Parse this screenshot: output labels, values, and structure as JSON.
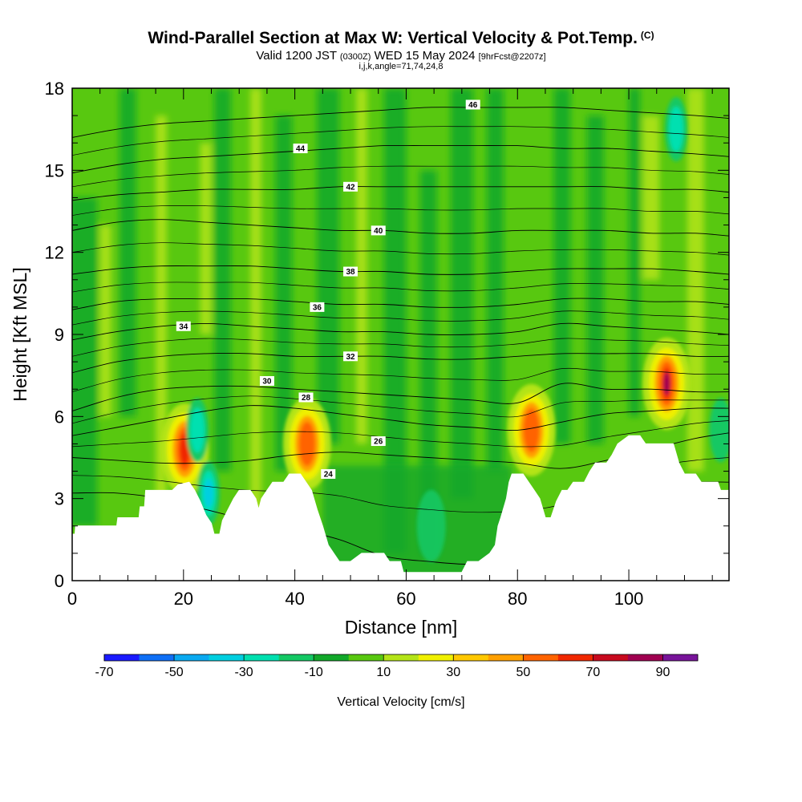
{
  "title": {
    "main": "Wind-Parallel Section at Max W: Vertical Velocity & Pot.Temp.",
    "copyright": "(C)",
    "valid_a": "Valid 1200 JST",
    "valid_b": "(0300Z)",
    "valid_c": "WED 15 May 2024",
    "valid_d": "[9hrFcst@2207z]",
    "indices": "i,j,k,angle=71,74,24,8"
  },
  "chart_data": {
    "type": "heatmap",
    "xlabel": "Distance [nm]",
    "ylabel": "Height [Kft MSL]",
    "xlim": [
      0,
      118
    ],
    "ylim": [
      0,
      18
    ],
    "x_ticks": [
      0,
      20,
      40,
      60,
      80,
      100
    ],
    "y_ticks": [
      0,
      3,
      6,
      9,
      12,
      15,
      18
    ],
    "colorbar": {
      "label": "Vertical Velocity [cm/s]",
      "tick_labels": [
        "-70",
        "-50",
        "-30",
        "-10",
        "10",
        "30",
        "50",
        "70",
        "90"
      ],
      "levels": [
        -70,
        -60,
        -50,
        -40,
        -30,
        -20,
        -10,
        0,
        10,
        20,
        30,
        40,
        50,
        60,
        70,
        80,
        90
      ],
      "colors": [
        "#1a1aff",
        "#0f6ff5",
        "#0aa9f0",
        "#00cfe0",
        "#00e0b0",
        "#14c864",
        "#12a82a",
        "#58c810",
        "#b4e418",
        "#f0f000",
        "#ffc800",
        "#ffa000",
        "#ff6400",
        "#f02800",
        "#c80a1e",
        "#a00050",
        "#78149a"
      ]
    },
    "terrain_kft": [
      [
        0,
        1.7
      ],
      [
        0.5,
        1.7
      ],
      [
        0.6,
        2.0
      ],
      [
        8,
        2.0
      ],
      [
        8.2,
        2.3
      ],
      [
        12,
        2.3
      ],
      [
        12.2,
        2.7
      ],
      [
        13,
        2.7
      ],
      [
        13.2,
        3.3
      ],
      [
        18,
        3.3
      ],
      [
        19,
        3.5
      ],
      [
        21,
        3.6
      ],
      [
        22,
        3.3
      ],
      [
        23,
        2.9
      ],
      [
        24,
        2.4
      ],
      [
        25,
        2.1
      ],
      [
        25.5,
        1.7
      ],
      [
        26.5,
        1.7
      ],
      [
        27,
        2.2
      ],
      [
        28,
        2.6
      ],
      [
        29,
        3.0
      ],
      [
        30,
        3.3
      ],
      [
        32,
        3.3
      ],
      [
        33,
        3.0
      ],
      [
        33.5,
        2.6
      ],
      [
        34,
        3.0
      ],
      [
        35,
        3.3
      ],
      [
        36,
        3.6
      ],
      [
        38,
        3.6
      ],
      [
        39,
        3.9
      ],
      [
        41,
        3.9
      ],
      [
        42,
        3.6
      ],
      [
        43,
        3.3
      ],
      [
        44,
        2.6
      ],
      [
        45,
        2.0
      ],
      [
        46,
        1.3
      ],
      [
        47,
        1.0
      ],
      [
        48,
        0.7
      ],
      [
        50,
        0.7
      ],
      [
        52,
        1.0
      ],
      [
        54,
        1.0
      ],
      [
        56,
        1.0
      ],
      [
        57,
        0.7
      ],
      [
        59,
        0.7
      ],
      [
        59.5,
        0.3
      ],
      [
        70,
        0.3
      ],
      [
        71,
        0.7
      ],
      [
        73,
        0.7
      ],
      [
        75,
        1.0
      ],
      [
        76,
        1.3
      ],
      [
        76.5,
        2.0
      ],
      [
        77,
        2.3
      ],
      [
        78,
        3.0
      ],
      [
        78.5,
        3.6
      ],
      [
        79,
        3.9
      ],
      [
        81,
        3.9
      ],
      [
        82,
        3.6
      ],
      [
        83,
        3.3
      ],
      [
        84,
        3.0
      ],
      [
        85,
        2.3
      ],
      [
        86,
        2.3
      ],
      [
        87,
        2.9
      ],
      [
        88,
        3.3
      ],
      [
        89,
        3.3
      ],
      [
        90,
        3.6
      ],
      [
        92,
        3.6
      ],
      [
        93,
        4.0
      ],
      [
        94,
        4.3
      ],
      [
        96,
        4.3
      ],
      [
        97,
        4.6
      ],
      [
        98,
        5.0
      ],
      [
        100,
        5.3
      ],
      [
        102,
        5.3
      ],
      [
        103,
        5.0
      ],
      [
        108,
        5.0
      ],
      [
        109,
        4.3
      ],
      [
        110,
        3.9
      ],
      [
        112,
        3.9
      ],
      [
        113,
        3.6
      ],
      [
        116,
        3.6
      ],
      [
        116.5,
        3.3
      ],
      [
        118,
        3.3
      ]
    ],
    "theta_contours": [
      {
        "label": "24",
        "heights": [
          3.2,
          3.2,
          3.0,
          2.6,
          2.2,
          1.9,
          1.5,
          0.9,
          0.7,
          0.6,
          0.8,
          1.5,
          2.8,
          3.5,
          3.6,
          3.6
        ],
        "label_at": [
          46,
          3.9
        ]
      },
      {
        "label": "26",
        "heights": [
          4.5,
          4.4,
          4.3,
          4.3,
          4.4,
          4.6,
          4.7,
          4.6,
          4.5,
          4.4,
          4.3,
          4.1,
          4.4,
          4.8,
          5.2,
          5.4
        ],
        "label_at": [
          55,
          5.1
        ]
      },
      {
        "label": "28",
        "heights": [
          5.3,
          5.6,
          5.9,
          6.2,
          6.4,
          6.3,
          6.1,
          5.9,
          5.7,
          5.6,
          5.5,
          5.8,
          6.1,
          6.2,
          6.3,
          6.3
        ],
        "label_at": [
          42,
          6.7
        ]
      },
      {
        "label": "30",
        "heights": [
          6.2,
          6.7,
          7.0,
          7.1,
          7.1,
          7.0,
          6.9,
          6.8,
          6.7,
          6.6,
          6.5,
          7.2,
          7.0,
          7.0,
          6.9,
          6.9
        ],
        "label_at": [
          35,
          7.3
        ]
      },
      {
        "label": "32",
        "heights": [
          7.6,
          8.0,
          8.2,
          8.3,
          8.3,
          8.2,
          8.2,
          8.2,
          8.1,
          8.1,
          8.2,
          8.3,
          8.3,
          8.3,
          8.2,
          8.2
        ],
        "label_at": [
          50,
          8.2
        ]
      },
      {
        "label": "34",
        "heights": [
          8.8,
          9.1,
          9.3,
          9.4,
          9.3,
          9.2,
          9.1,
          9.1,
          9.0,
          9.0,
          9.1,
          9.4,
          9.3,
          9.2,
          9.1,
          9.0
        ],
        "label_at": [
          20,
          9.3
        ]
      },
      {
        "label": "36",
        "heights": [
          9.9,
          10.2,
          10.3,
          10.3,
          10.3,
          10.2,
          10.1,
          10.1,
          10.0,
          10.0,
          10.1,
          10.3,
          10.3,
          10.2,
          10.2,
          10.1
        ],
        "label_at": [
          44,
          10.0
        ]
      },
      {
        "label": "38",
        "heights": [
          11.2,
          11.4,
          11.5,
          11.5,
          11.5,
          11.4,
          11.3,
          11.3,
          11.2,
          11.2,
          11.3,
          11.4,
          11.4,
          11.4,
          11.3,
          11.2
        ],
        "label_at": [
          50,
          11.3
        ]
      },
      {
        "label": "40",
        "heights": [
          12.8,
          13.1,
          13.2,
          13.1,
          13.0,
          12.9,
          12.8,
          12.8,
          12.7,
          12.7,
          12.8,
          12.8,
          12.8,
          12.7,
          12.7,
          12.6
        ],
        "label_at": [
          55,
          12.8
        ]
      },
      {
        "label": "42",
        "heights": [
          13.9,
          14.1,
          14.2,
          14.3,
          14.3,
          14.3,
          14.4,
          14.4,
          14.4,
          14.4,
          14.4,
          14.4,
          14.4,
          14.3,
          14.3,
          14.2
        ],
        "label_at": [
          50,
          14.4
        ]
      },
      {
        "label": "44",
        "heights": [
          14.9,
          15.2,
          15.4,
          15.5,
          15.6,
          15.7,
          15.8,
          15.9,
          15.9,
          15.9,
          15.9,
          15.8,
          15.8,
          15.7,
          15.6,
          15.5
        ],
        "label_at": [
          41,
          15.8
        ]
      },
      {
        "label": "46",
        "heights": [
          16.2,
          16.5,
          16.7,
          16.8,
          16.9,
          17.0,
          17.1,
          17.2,
          17.3,
          17.3,
          17.3,
          17.3,
          17.2,
          17.1,
          17.0,
          16.9
        ],
        "label_at": [
          72,
          17.4
        ]
      }
    ],
    "contour_x": [
      0,
      8,
      16,
      24,
      32,
      40,
      48,
      56,
      64,
      72,
      80,
      88,
      96,
      104,
      112,
      118
    ],
    "updraft_cores": [
      {
        "x": 20.2,
        "y": 4.8,
        "w_peak": 70
      },
      {
        "x": 42.2,
        "y": 5.0,
        "w_peak": 60
      },
      {
        "x": 82.5,
        "y": 5.5,
        "w_peak": 60
      },
      {
        "x": 106.8,
        "y": 7.2,
        "w_peak": 90
      }
    ],
    "downdraft_cores": [
      {
        "x": 24.5,
        "y": 3.2,
        "w_peak": -35
      },
      {
        "x": 22.5,
        "y": 5.5,
        "w_peak": -25
      },
      {
        "x": 108.5,
        "y": 16.5,
        "w_peak": -30
      },
      {
        "x": 116.5,
        "y": 5.5,
        "w_peak": -20
      }
    ]
  }
}
